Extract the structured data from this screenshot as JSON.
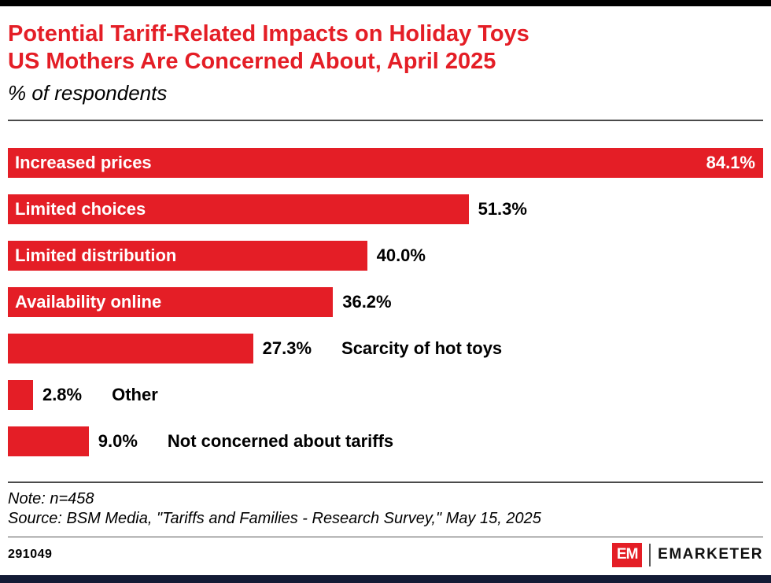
{
  "page": {
    "title_line1": "Potential Tariff-Related Impacts on Holiday Toys",
    "title_line2": "US Mothers Are Concerned About, April 2025",
    "subtitle": "% of respondents",
    "note": "Note: n=458",
    "source": "Source: BSM Media, \"Tariffs and Families - Research Survey,\" May 15, 2025",
    "chart_id": "291049",
    "brand": {
      "logo_text": "EM",
      "name": "EMARKETER",
      "accent_color": "#e41e26"
    }
  },
  "chart_data": {
    "type": "bar",
    "orientation": "horizontal",
    "title": "Potential Tariff-Related Impacts on Holiday Toys US Mothers Are Concerned About, April 2025",
    "subtitle": "% of respondents",
    "unit": "%",
    "categories": [
      "Increased prices",
      "Limited choices",
      "Limited distribution",
      "Availability online",
      "Scarcity of hot toys",
      "Other",
      "Not concerned about tariffs"
    ],
    "values": [
      84.1,
      51.3,
      40.0,
      36.2,
      27.3,
      2.8,
      9.0
    ],
    "value_labels": [
      "84.1%",
      "51.3%",
      "40.0%",
      "36.2%",
      "27.3%",
      "2.8%",
      "9.0%"
    ],
    "bar_color": "#e41e26",
    "max_value": 84.1,
    "xlim": [
      0,
      84.1
    ],
    "grid": false,
    "legend": "none",
    "label_position": [
      "inside",
      "inside",
      "inside",
      "inside",
      "outside",
      "outside",
      "outside"
    ],
    "value_position": [
      "inside",
      "outside",
      "outside",
      "outside",
      "outside",
      "outside",
      "outside"
    ]
  }
}
